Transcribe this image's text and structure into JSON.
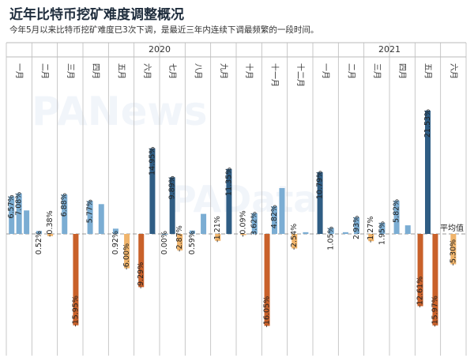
{
  "title": "近年比特币挖矿难度调整概况",
  "subtitle": "今年5月以来比特币挖矿难度已3次下调，是最近三年内连续下调最频繁的一段时间。",
  "watermarks": [
    "PANews",
    "PAData"
  ],
  "colors": {
    "pos_light": "#7badd3",
    "pos_dark": "#2f5d84",
    "neg_light": "#f0b46b",
    "neg_dark": "#c9612a",
    "baseline": "#999999",
    "grid": "#bbbbbb"
  },
  "chart_data": {
    "type": "bar",
    "title": "近年比特币挖矿难度调整概况",
    "subtitle": "今年5月以来比特币挖矿难度已3次下调，是最近三年内连续下调最频繁的一段时间。",
    "ylabel": "",
    "xlabel": "",
    "ylim": [
      -17,
      23
    ],
    "grid": true,
    "years": [
      {
        "label": "2020",
        "months": [
          "一月",
          "二月",
          "三月",
          "四月",
          "五月",
          "六月",
          "七月",
          "八月",
          "九月",
          "十月",
          "十一月",
          "十二月"
        ]
      },
      {
        "label": "2021",
        "months": [
          "一月",
          "二月",
          "三月",
          "四月",
          "五月",
          "六月"
        ]
      }
    ],
    "average_label": "平均值",
    "average_value": 0,
    "months": [
      {
        "label": "一月",
        "bars": [
          {
            "v": 6.57,
            "label": "6.57%"
          },
          {
            "v": 7.08,
            "label": "7.08%"
          },
          {
            "v": 4.1,
            "label": ""
          }
        ]
      },
      {
        "label": "二月",
        "bars": [
          {
            "v": 0.52,
            "label": "0.52%"
          },
          {
            "v": -0.38,
            "label": "-0.38%"
          }
        ]
      },
      {
        "label": "三月",
        "bars": [
          {
            "v": 6.88,
            "label": "6.88%"
          },
          {
            "v": -15.95,
            "label": "-15.95%"
          }
        ]
      },
      {
        "label": "四月",
        "bars": [
          {
            "v": 5.77,
            "label": "5.77%"
          },
          {
            "v": 5.2,
            "label": ""
          }
        ]
      },
      {
        "label": "五月",
        "bars": [
          {
            "v": 0.92,
            "label": "0.92%"
          },
          {
            "v": -6.0,
            "label": "-6.00%"
          }
        ]
      },
      {
        "label": "六月",
        "bars": [
          {
            "v": -9.29,
            "label": "-9.29%"
          },
          {
            "v": 14.95,
            "label": "14.95%"
          }
        ]
      },
      {
        "label": "七月",
        "bars": [
          {
            "v": 0.0,
            "label": "0.00%"
          },
          {
            "v": 9.89,
            "label": "9.89%"
          },
          {
            "v": -2.87,
            "label": "-2.87%"
          }
        ]
      },
      {
        "label": "八月",
        "bars": [
          {
            "v": 0.59,
            "label": "0.59%"
          },
          {
            "v": 3.5,
            "label": ""
          }
        ]
      },
      {
        "label": "九月",
        "bars": [
          {
            "v": -1.21,
            "label": "-1.21%"
          },
          {
            "v": 11.35,
            "label": "11.35%"
          }
        ]
      },
      {
        "label": "十月",
        "bars": [
          {
            "v": -0.09,
            "label": "-0.09%"
          },
          {
            "v": 3.62,
            "label": "3.62%"
          }
        ]
      },
      {
        "label": "十一月",
        "bars": [
          {
            "v": -16.05,
            "label": "-16.05%"
          },
          {
            "v": 4.82,
            "label": "4.82%"
          },
          {
            "v": 8.0,
            "label": ""
          }
        ]
      },
      {
        "label": "十二月",
        "bars": [
          {
            "v": -2.54,
            "label": "-2.54%"
          },
          {
            "v": 0.3,
            "label": ""
          }
        ]
      },
      {
        "label": "一月",
        "bars": [
          {
            "v": 10.79,
            "label": "10.79%"
          },
          {
            "v": 1.05,
            "label": "1.05%"
          }
        ]
      },
      {
        "label": "二月",
        "bars": [
          {
            "v": 0.3,
            "label": ""
          },
          {
            "v": 2.93,
            "label": "2.93%"
          }
        ]
      },
      {
        "label": "三月",
        "bars": [
          {
            "v": -1.27,
            "label": "-1.27%"
          },
          {
            "v": 1.95,
            "label": "1.95%"
          }
        ]
      },
      {
        "label": "四月",
        "bars": [
          {
            "v": 5.82,
            "label": "5.82%"
          },
          {
            "v": 1.5,
            "label": ""
          }
        ]
      },
      {
        "label": "五月",
        "bars": [
          {
            "v": -12.61,
            "label": "-12.61%"
          },
          {
            "v": 21.53,
            "label": "21.53%"
          },
          {
            "v": -15.97,
            "label": "-15.97%"
          }
        ]
      },
      {
        "label": "六月",
        "bars": [
          {
            "v": -5.3,
            "label": "-5.30%"
          }
        ]
      }
    ]
  }
}
